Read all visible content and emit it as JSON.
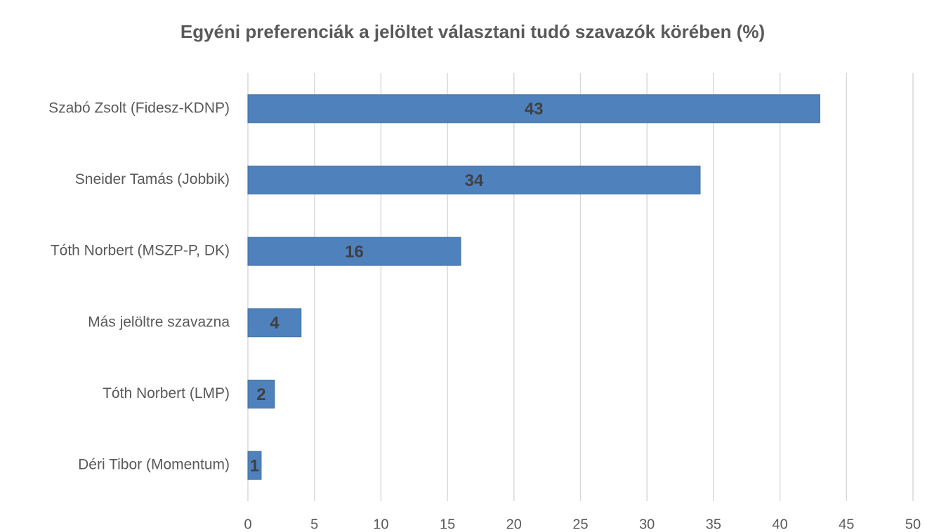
{
  "chart_data": {
    "type": "barh",
    "title": "Egyéni preferenciák a jelöltet választani tudó szavazók körében (%)",
    "categories": [
      "Szabó Zsolt (Fidesz-KDNP)",
      "Sneider Tamás (Jobbik)",
      "Tóth Norbert (MSZP-P, DK)",
      "Más jelöltre szavazna",
      "Tóth Norbert (LMP)",
      "Déri Tibor (Momentum)"
    ],
    "values": [
      43,
      34,
      16,
      4,
      2,
      1
    ],
    "color": "#4f81bd",
    "xlim": [
      0,
      50
    ],
    "xticks": [
      0,
      5,
      10,
      15,
      20,
      25,
      30,
      35,
      40,
      45,
      50
    ],
    "grid": true
  }
}
